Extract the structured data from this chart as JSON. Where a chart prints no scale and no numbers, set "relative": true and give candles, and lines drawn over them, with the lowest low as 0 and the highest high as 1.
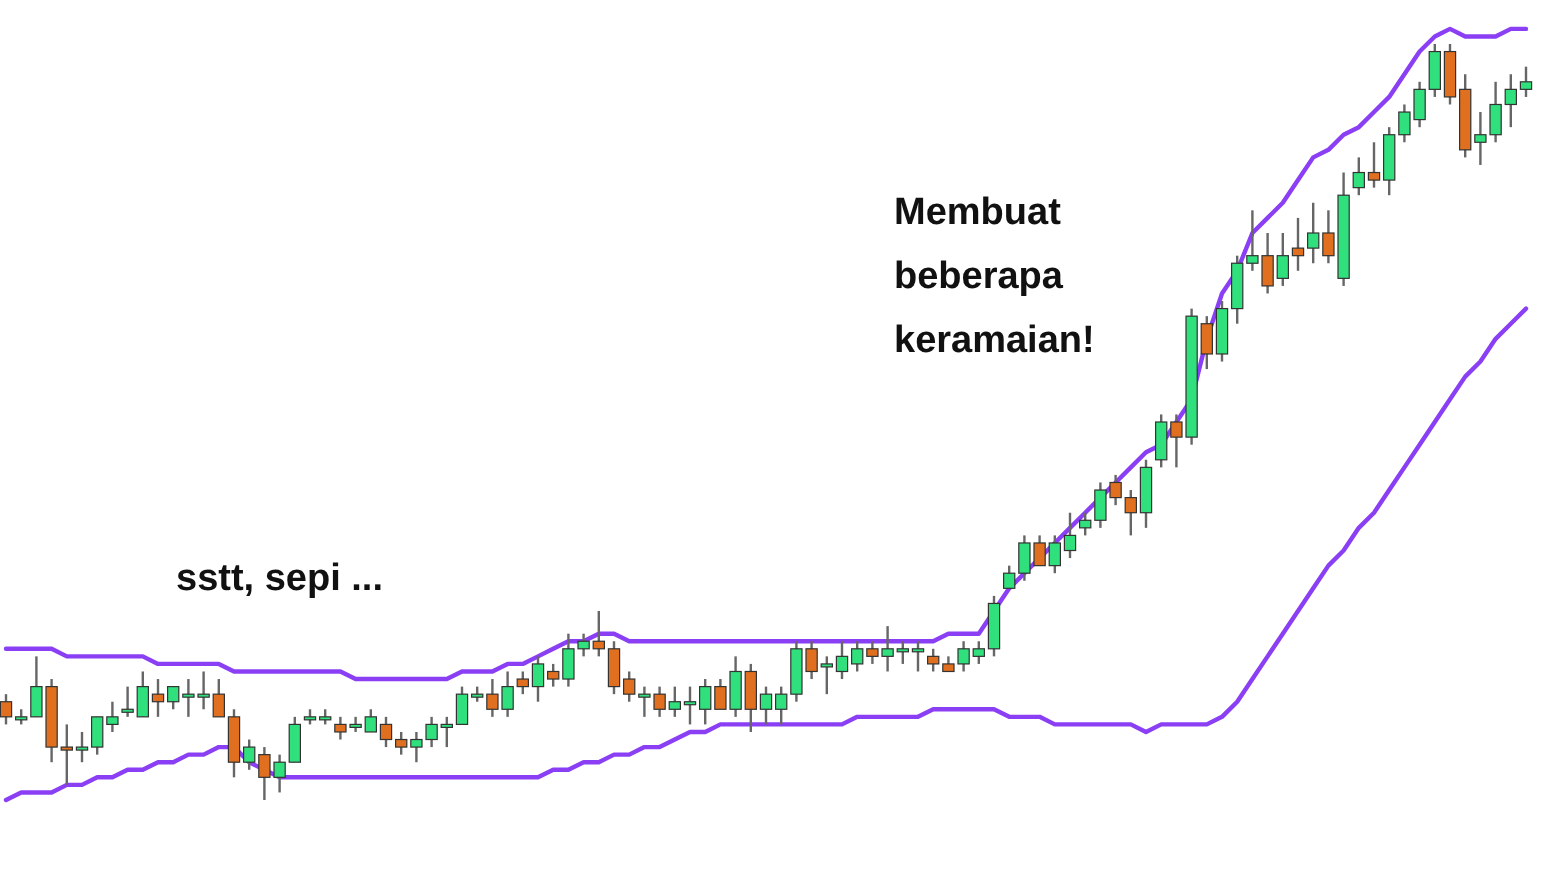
{
  "chart_data": {
    "type": "candlestick",
    "relative": true,
    "annotations": [
      "sstt, sepi ...",
      "Membuat\nbeberapa\nkeramaian!"
    ],
    "colors": [
      "#e0701f",
      "#2fe07d",
      "#2fe07d",
      "#e0701f",
      "#e0701f",
      "#2fe07d",
      "#2fe07d",
      "#2fe07d",
      "#2fe07d",
      "#2fe07d",
      "#e0701f",
      "#2fe07d",
      "#2fe07d",
      "#2fe07d",
      "#e0701f",
      "#e0701f",
      "#2fe07d",
      "#e0701f",
      "#2fe07d",
      "#2fe07d",
      "#2fe07d",
      "#2fe07d",
      "#e0701f",
      "#2fe07d",
      "#2fe07d",
      "#e0701f",
      "#e0701f",
      "#2fe07d",
      "#2fe07d",
      "#2fe07d",
      "#2fe07d",
      "#2fe07d",
      "#e0701f",
      "#2fe07d",
      "#e0701f",
      "#2fe07d",
      "#e0701f",
      "#2fe07d",
      "#2fe07d",
      "#e0701f",
      "#e0701f",
      "#e0701f",
      "#2fe07d",
      "#e0701f",
      "#2fe07d",
      "#2fe07d",
      "#2fe07d",
      "#e0701f",
      "#2fe07d",
      "#e0701f",
      "#2fe07d",
      "#2fe07d",
      "#2fe07d",
      "#e0701f",
      "#2fe07d",
      "#2fe07d",
      "#2fe07d",
      "#e0701f",
      "#2fe07d",
      "#2fe07d",
      "#2fe07d",
      "#e0701f",
      "#e0701f",
      "#2fe07d",
      "#2fe07d",
      "#2fe07d",
      "#2fe07d",
      "#2fe07d",
      "#e0701f",
      "#2fe07d",
      "#2fe07d",
      "#2fe07d",
      "#2fe07d",
      "#e0701f",
      "#e0701f",
      "#2fe07d",
      "#2fe07d",
      "#e0701f",
      "#2fe07d",
      "#e0701f",
      "#2fe07d",
      "#2fe07d",
      "#2fe07d",
      "#e0701f",
      "#2fe07d",
      "#e0701f",
      "#2fe07d",
      "#e0701f",
      "#2fe07d",
      "#2fe07d",
      "#e0701f",
      "#2fe07d",
      "#2fe07d",
      "#2fe07d",
      "#2fe07d",
      "#e0701f",
      "#e0701f",
      "#2fe07d",
      "#2fe07d",
      "#2fe07d",
      "#2fe07d"
    ],
    "categories": [
      null,
      null,
      null,
      null,
      null,
      null,
      null,
      null,
      null,
      null,
      null,
      null,
      null,
      null,
      null,
      null,
      null,
      null,
      null,
      null,
      null,
      null,
      null,
      null,
      null,
      null,
      null,
      null,
      null,
      null,
      null,
      null,
      null,
      null,
      null,
      null,
      null,
      null,
      null,
      null,
      null,
      null,
      null,
      null,
      null,
      null,
      null,
      null,
      null,
      null,
      null,
      null,
      null,
      null,
      null,
      null,
      null,
      null,
      null,
      null,
      null,
      null,
      null,
      null,
      null,
      null,
      null,
      null,
      null,
      null,
      null,
      null,
      null,
      null,
      null,
      null,
      null,
      null,
      null,
      null,
      null,
      null,
      null,
      null,
      null,
      null,
      null,
      null,
      null,
      null,
      null,
      null,
      null,
      null,
      null,
      null,
      null,
      null,
      null,
      null,
      null
    ],
    "ohlc": [
      [
        0.13,
        0.14,
        0.1,
        0.11
      ],
      [
        0.11,
        0.12,
        0.1,
        0.11
      ],
      [
        0.11,
        0.19,
        0.11,
        0.15
      ],
      [
        0.15,
        0.16,
        0.05,
        0.07
      ],
      [
        0.07,
        0.1,
        0.02,
        0.07
      ],
      [
        0.07,
        0.09,
        0.05,
        0.07
      ],
      [
        0.07,
        0.11,
        0.06,
        0.11
      ],
      [
        0.1,
        0.13,
        0.09,
        0.11
      ],
      [
        0.12,
        0.15,
        0.11,
        0.12
      ],
      [
        0.11,
        0.17,
        0.11,
        0.15
      ],
      [
        0.14,
        0.16,
        0.11,
        0.13
      ],
      [
        0.13,
        0.15,
        0.12,
        0.15
      ],
      [
        0.14,
        0.16,
        0.11,
        0.14
      ],
      [
        0.14,
        0.17,
        0.12,
        0.14
      ],
      [
        0.14,
        0.16,
        0.11,
        0.11
      ],
      [
        0.11,
        0.12,
        0.03,
        0.05
      ],
      [
        0.05,
        0.08,
        0.04,
        0.07
      ],
      [
        0.06,
        0.07,
        0,
        0.03
      ],
      [
        0.03,
        0.06,
        0.01,
        0.05
      ],
      [
        0.05,
        0.11,
        0.05,
        0.1
      ],
      [
        0.11,
        0.12,
        0.1,
        0.11
      ],
      [
        0.11,
        0.12,
        0.1,
        0.11
      ],
      [
        0.1,
        0.11,
        0.08,
        0.09
      ],
      [
        0.1,
        0.11,
        0.09,
        0.1
      ],
      [
        0.09,
        0.12,
        0.09,
        0.11
      ],
      [
        0.1,
        0.11,
        0.07,
        0.08
      ],
      [
        0.08,
        0.09,
        0.06,
        0.07
      ],
      [
        0.07,
        0.09,
        0.05,
        0.08
      ],
      [
        0.08,
        0.11,
        0.07,
        0.1
      ],
      [
        0.1,
        0.11,
        0.07,
        0.1
      ],
      [
        0.1,
        0.15,
        0.1,
        0.14
      ],
      [
        0.14,
        0.15,
        0.13,
        0.14
      ],
      [
        0.14,
        0.16,
        0.11,
        0.12
      ],
      [
        0.12,
        0.17,
        0.11,
        0.15
      ],
      [
        0.16,
        0.17,
        0.14,
        0.15
      ],
      [
        0.15,
        0.19,
        0.13,
        0.18
      ],
      [
        0.17,
        0.18,
        0.15,
        0.16
      ],
      [
        0.16,
        0.22,
        0.15,
        0.2
      ],
      [
        0.2,
        0.22,
        0.19,
        0.21
      ],
      [
        0.21,
        0.25,
        0.19,
        0.2
      ],
      [
        0.2,
        0.21,
        0.14,
        0.15
      ],
      [
        0.16,
        0.17,
        0.13,
        0.14
      ],
      [
        0.14,
        0.15,
        0.11,
        0.14
      ],
      [
        0.14,
        0.15,
        0.11,
        0.12
      ],
      [
        0.12,
        0.15,
        0.11,
        0.13
      ],
      [
        0.13,
        0.15,
        0.1,
        0.13
      ],
      [
        0.12,
        0.16,
        0.1,
        0.15
      ],
      [
        0.15,
        0.16,
        0.12,
        0.12
      ],
      [
        0.12,
        0.19,
        0.11,
        0.17
      ],
      [
        0.17,
        0.18,
        0.09,
        0.12
      ],
      [
        0.12,
        0.15,
        0.1,
        0.14
      ],
      [
        0.12,
        0.15,
        0.1,
        0.14
      ],
      [
        0.14,
        0.21,
        0.13,
        0.2
      ],
      [
        0.2,
        0.21,
        0.16,
        0.17
      ],
      [
        0.18,
        0.19,
        0.14,
        0.18
      ],
      [
        0.17,
        0.21,
        0.16,
        0.19
      ],
      [
        0.18,
        0.21,
        0.17,
        0.2
      ],
      [
        0.2,
        0.21,
        0.18,
        0.19
      ],
      [
        0.19,
        0.23,
        0.17,
        0.2
      ],
      [
        0.2,
        0.21,
        0.18,
        0.2
      ],
      [
        0.2,
        0.21,
        0.17,
        0.2
      ],
      [
        0.19,
        0.2,
        0.17,
        0.18
      ],
      [
        0.18,
        0.19,
        0.17,
        0.17
      ],
      [
        0.18,
        0.21,
        0.17,
        0.2
      ],
      [
        0.19,
        0.21,
        0.18,
        0.2
      ],
      [
        0.2,
        0.27,
        0.19,
        0.26
      ],
      [
        0.28,
        0.31,
        0.28,
        0.3
      ],
      [
        0.3,
        0.35,
        0.29,
        0.34
      ],
      [
        0.34,
        0.35,
        0.31,
        0.31
      ],
      [
        0.31,
        0.35,
        0.3,
        0.34
      ],
      [
        0.33,
        0.38,
        0.32,
        0.35
      ],
      [
        0.36,
        0.38,
        0.35,
        0.37
      ],
      [
        0.37,
        0.42,
        0.36,
        0.41
      ],
      [
        0.42,
        0.43,
        0.39,
        0.4
      ],
      [
        0.4,
        0.41,
        0.35,
        0.38
      ],
      [
        0.38,
        0.45,
        0.36,
        0.44
      ],
      [
        0.45,
        0.51,
        0.44,
        0.5
      ],
      [
        0.5,
        0.51,
        0.44,
        0.48
      ],
      [
        0.48,
        0.65,
        0.47,
        0.64
      ],
      [
        0.63,
        0.64,
        0.57,
        0.59
      ],
      [
        0.59,
        0.66,
        0.58,
        0.65
      ],
      [
        0.65,
        0.72,
        0.63,
        0.71
      ],
      [
        0.71,
        0.78,
        0.7,
        0.72
      ],
      [
        0.72,
        0.75,
        0.67,
        0.68
      ],
      [
        0.69,
        0.75,
        0.68,
        0.72
      ],
      [
        0.73,
        0.77,
        0.7,
        0.72
      ],
      [
        0.73,
        0.79,
        0.71,
        0.75
      ],
      [
        0.75,
        0.78,
        0.71,
        0.72
      ],
      [
        0.69,
        0.83,
        0.68,
        0.8
      ],
      [
        0.81,
        0.85,
        0.8,
        0.83
      ],
      [
        0.83,
        0.87,
        0.81,
        0.82
      ],
      [
        0.82,
        0.89,
        0.8,
        0.88
      ],
      [
        0.88,
        0.92,
        0.87,
        0.91
      ],
      [
        0.9,
        0.95,
        0.89,
        0.94
      ],
      [
        0.94,
        1,
        0.93,
        0.99
      ],
      [
        0.99,
        1,
        0.92,
        0.93
      ],
      [
        0.94,
        0.96,
        0.85,
        0.86
      ],
      [
        0.87,
        0.91,
        0.84,
        0.88
      ],
      [
        0.88,
        0.95,
        0.87,
        0.92
      ],
      [
        0.92,
        0.96,
        0.89,
        0.94
      ],
      [
        0.94,
        0.97,
        0.93,
        0.95
      ]
    ],
    "series": [
      {
        "type": "line",
        "color": "#8b3ff5",
        "values": [
          0.2,
          0.2,
          0.2,
          0.2,
          0.19,
          0.19,
          0.19,
          0.19,
          0.19,
          0.19,
          0.18,
          0.18,
          0.18,
          0.18,
          0.18,
          0.17,
          0.17,
          0.17,
          0.17,
          0.17,
          0.17,
          0.17,
          0.17,
          0.16,
          0.16,
          0.16,
          0.16,
          0.16,
          0.16,
          0.16,
          0.17,
          0.17,
          0.17,
          0.18,
          0.18,
          0.19,
          0.2,
          0.21,
          0.21,
          0.22,
          0.22,
          0.21,
          0.21,
          0.21,
          0.21,
          0.21,
          0.21,
          0.21,
          0.21,
          0.21,
          0.21,
          0.21,
          0.21,
          0.21,
          0.21,
          0.21,
          0.21,
          0.21,
          0.21,
          0.21,
          0.21,
          0.21,
          0.22,
          0.22,
          0.22,
          0.25,
          0.28,
          0.3,
          0.32,
          0.34,
          0.36,
          0.38,
          0.4,
          0.42,
          0.44,
          0.46,
          0.47,
          0.5,
          0.53,
          0.61,
          0.67,
          0.7,
          0.75,
          0.77,
          0.79,
          0.82,
          0.85,
          0.86,
          0.88,
          0.89,
          0.91,
          0.93,
          0.96,
          0.99,
          1.01,
          1.02,
          1.01,
          1.01,
          1.01,
          1.02,
          1.02
        ]
      },
      {
        "type": "line",
        "color": "#8b3ff5",
        "values": [
          0,
          0.01,
          0.01,
          0.01,
          0.02,
          0.02,
          0.03,
          0.03,
          0.04,
          0.04,
          0.05,
          0.05,
          0.06,
          0.06,
          0.07,
          0.07,
          0.05,
          0.04,
          0.03,
          0.03,
          0.03,
          0.03,
          0.03,
          0.03,
          0.03,
          0.03,
          0.03,
          0.03,
          0.03,
          0.03,
          0.03,
          0.03,
          0.03,
          0.03,
          0.03,
          0.03,
          0.04,
          0.04,
          0.05,
          0.05,
          0.06,
          0.06,
          0.07,
          0.07,
          0.08,
          0.09,
          0.09,
          0.1,
          0.1,
          0.1,
          0.1,
          0.1,
          0.1,
          0.1,
          0.1,
          0.1,
          0.11,
          0.11,
          0.11,
          0.11,
          0.11,
          0.12,
          0.12,
          0.12,
          0.12,
          0.12,
          0.11,
          0.11,
          0.11,
          0.1,
          0.1,
          0.1,
          0.1,
          0.1,
          0.1,
          0.09,
          0.1,
          0.1,
          0.1,
          0.1,
          0.11,
          0.13,
          0.16,
          0.19,
          0.22,
          0.25,
          0.28,
          0.31,
          0.33,
          0.36,
          0.38,
          0.41,
          0.44,
          0.47,
          0.5,
          0.53,
          0.56,
          0.58,
          0.61,
          0.63,
          0.65
        ]
      }
    ]
  }
}
